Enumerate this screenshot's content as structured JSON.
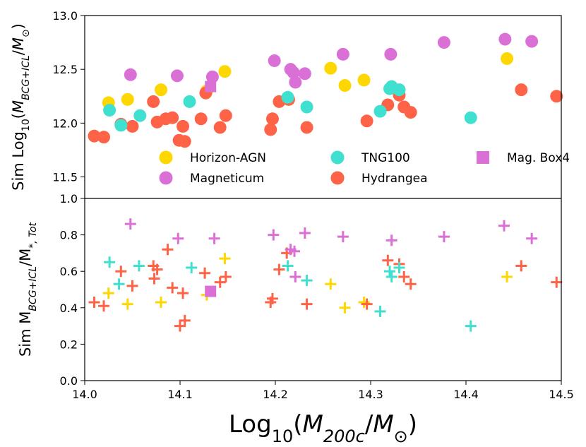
{
  "chart_data": [
    {
      "type": "scatter",
      "panel": "top",
      "ylabel": "Sim Log10(M_BCG+ICL/M⊙)",
      "ylim": [
        11.3,
        13.0
      ],
      "yticks": [
        "11.5",
        "12.0",
        "12.5",
        "13.0"
      ],
      "legend": {
        "placement": "lower-center",
        "entries": [
          {
            "label": "Horizon-AGN",
            "marker": "circle",
            "color": "#FFD700"
          },
          {
            "label": "Magneticum",
            "marker": "circle",
            "color": "#DA70D6"
          },
          {
            "label": "TNG100",
            "marker": "circle",
            "color": "#40E0D0"
          },
          {
            "label": "Hydrangea",
            "marker": "circle",
            "color": "#FF6347"
          },
          {
            "label": "Mag. Box4",
            "marker": "square",
            "color": "#DA70D6"
          }
        ]
      },
      "series": [
        {
          "name": "Horizon-AGN",
          "marker": "circle",
          "color": "#FFD700",
          "x": [
            14.025,
            14.045,
            14.08,
            14.128,
            14.147,
            14.258,
            14.273,
            14.293,
            14.443
          ],
          "y": [
            12.19,
            12.22,
            12.31,
            12.3,
            12.48,
            12.51,
            12.35,
            12.4,
            12.6
          ]
        },
        {
          "name": "Hydrangea",
          "marker": "circle",
          "color": "#FF6347",
          "x": [
            14.01,
            14.02,
            14.038,
            14.05,
            14.072,
            14.076,
            14.085,
            14.092,
            14.103,
            14.099,
            14.105,
            14.122,
            14.127,
            14.142,
            14.148,
            14.195,
            14.197,
            14.204,
            14.214,
            14.233,
            14.296,
            14.318,
            14.33,
            14.335,
            14.342,
            14.458,
            14.495
          ],
          "y": [
            11.88,
            11.87,
            11.99,
            11.97,
            12.2,
            12.01,
            12.04,
            12.05,
            11.97,
            11.84,
            11.83,
            12.04,
            12.28,
            11.96,
            12.07,
            11.94,
            12.04,
            12.2,
            12.22,
            11.96,
            12.02,
            12.17,
            12.26,
            12.15,
            12.1,
            12.31,
            12.25
          ]
        },
        {
          "name": "Magneticum",
          "marker": "circle",
          "color": "#DA70D6",
          "x": [
            14.048,
            14.097,
            14.134,
            14.199,
            14.216,
            14.219,
            14.221,
            14.231,
            14.271,
            14.321,
            14.377,
            14.441,
            14.469
          ],
          "y": [
            12.45,
            12.44,
            12.43,
            12.58,
            12.5,
            12.47,
            12.38,
            12.46,
            12.64,
            12.64,
            12.75,
            12.78,
            12.76
          ]
        },
        {
          "name": "Mag. Box4",
          "marker": "square",
          "color": "#DA70D6",
          "x": [
            14.132
          ],
          "y": [
            12.34
          ]
        },
        {
          "name": "TNG100",
          "marker": "circle",
          "color": "#40E0D0",
          "x": [
            14.026,
            14.038,
            14.058,
            14.11,
            14.213,
            14.233,
            14.31,
            14.32,
            14.322,
            14.33,
            14.405
          ],
          "y": [
            12.12,
            11.98,
            12.07,
            12.2,
            12.24,
            12.15,
            12.11,
            12.32,
            12.34,
            12.31,
            12.05
          ]
        }
      ]
    },
    {
      "type": "scatter",
      "panel": "bottom",
      "xlabel": "Log10(M_200c/M⊙)",
      "ylabel": "Sim M_BCG+ICL/M*,Tot",
      "xlim": [
        14.0,
        14.5
      ],
      "ylim": [
        0.0,
        1.0
      ],
      "xticks": [
        "14.0",
        "14.1",
        "14.2",
        "14.3",
        "14.4",
        "14.5"
      ],
      "yticks": [
        "0.0",
        "0.2",
        "0.4",
        "0.6",
        "0.8",
        "1.0"
      ],
      "series": [
        {
          "name": "Horizon-AGN",
          "marker": "plus",
          "color": "#FFD700",
          "x": [
            14.025,
            14.045,
            14.08,
            14.128,
            14.147,
            14.258,
            14.273,
            14.293,
            14.443
          ],
          "y": [
            0.48,
            0.42,
            0.43,
            0.47,
            0.67,
            0.53,
            0.4,
            0.43,
            0.57
          ]
        },
        {
          "name": "Hydrangea",
          "marker": "plus",
          "color": "#FF6347",
          "x": [
            14.01,
            14.02,
            14.038,
            14.05,
            14.072,
            14.073,
            14.076,
            14.087,
            14.092,
            14.1,
            14.103,
            14.105,
            14.126,
            14.142,
            14.148,
            14.195,
            14.197,
            14.204,
            14.212,
            14.233,
            14.296,
            14.318,
            14.33,
            14.335,
            14.342,
            14.458,
            14.495
          ],
          "y": [
            0.43,
            0.41,
            0.6,
            0.52,
            0.63,
            0.56,
            0.61,
            0.72,
            0.51,
            0.3,
            0.48,
            0.33,
            0.59,
            0.54,
            0.57,
            0.43,
            0.45,
            0.61,
            0.7,
            0.42,
            0.42,
            0.66,
            0.64,
            0.57,
            0.53,
            0.63,
            0.54
          ]
        },
        {
          "name": "Magneticum",
          "marker": "plus",
          "color": "#DA70D6",
          "x": [
            14.048,
            14.098,
            14.136,
            14.198,
            14.216,
            14.22,
            14.221,
            14.231,
            14.271,
            14.322,
            14.377,
            14.44,
            14.469
          ],
          "y": [
            0.86,
            0.78,
            0.78,
            0.8,
            0.72,
            0.71,
            0.57,
            0.81,
            0.79,
            0.77,
            0.79,
            0.85,
            0.78
          ]
        },
        {
          "name": "Mag. Box4",
          "marker": "square",
          "color": "#DA70D6",
          "x": [
            14.132
          ],
          "y": [
            0.49
          ]
        },
        {
          "name": "TNG100",
          "marker": "plus",
          "color": "#40E0D0",
          "x": [
            14.026,
            14.036,
            14.057,
            14.112,
            14.213,
            14.233,
            14.31,
            14.32,
            14.322,
            14.33,
            14.405
          ],
          "y": [
            0.65,
            0.53,
            0.63,
            0.62,
            0.63,
            0.55,
            0.38,
            0.6,
            0.57,
            0.62,
            0.3
          ]
        }
      ]
    }
  ]
}
